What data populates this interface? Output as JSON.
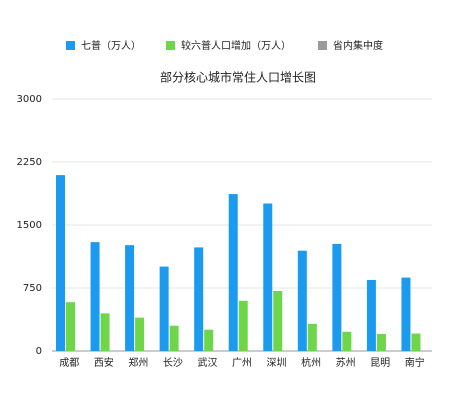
{
  "chart_data": {
    "type": "bar",
    "title": "部分核心城市常住人口增长图",
    "categories": [
      "成都",
      "西安",
      "郑州",
      "长沙",
      "武汉",
      "广州",
      "深圳",
      "杭州",
      "苏州",
      "昆明",
      "南宁"
    ],
    "series": [
      {
        "name": "七普（万人）",
        "color": "#1a9bf0",
        "values": [
          2094,
          1296,
          1260,
          1005,
          1233,
          1868,
          1756,
          1194,
          1275,
          846,
          874
        ]
      },
      {
        "name": "较六普人口增加（万人）",
        "color": "#6fd64a",
        "values": [
          581,
          448,
          397,
          301,
          254,
          598,
          714,
          324,
          229,
          203,
          208
        ]
      },
      {
        "name": "省内集中度",
        "color": "#9a9a9a",
        "values": [
          null,
          null,
          null,
          null,
          null,
          null,
          null,
          null,
          null,
          null,
          null
        ]
      }
    ],
    "ylim": [
      0,
      3000
    ],
    "yticks": [
      0,
      750,
      1500,
      2250,
      3000
    ],
    "grid": true,
    "legend": "top"
  }
}
